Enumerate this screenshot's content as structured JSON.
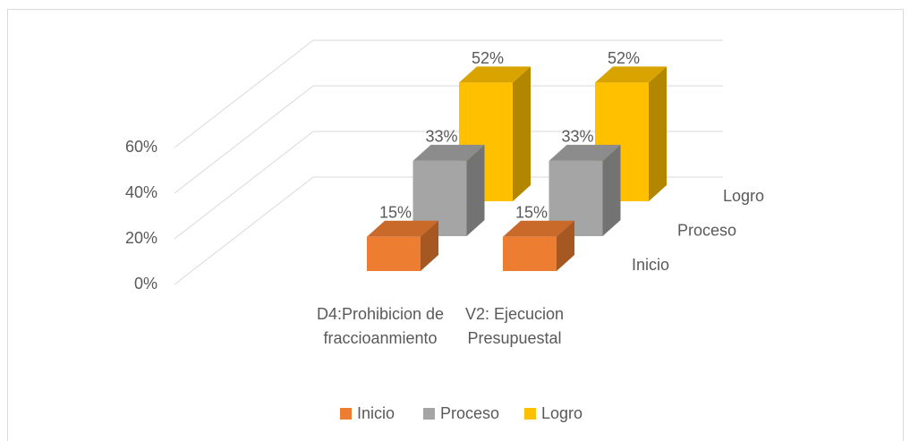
{
  "chart_data": {
    "type": "bar3d",
    "categories": [
      "D4:Prohibicion de fraccioanmiento",
      "V2: Ejecucion Presupuestal"
    ],
    "series": [
      {
        "name": "Inicio",
        "color": "#ED7D31",
        "values": [
          15,
          15
        ],
        "value_labels": [
          "15%",
          "15%"
        ]
      },
      {
        "name": "Proceso",
        "color": "#A5A5A5",
        "values": [
          33,
          33
        ],
        "value_labels": [
          "33%",
          "33%"
        ]
      },
      {
        "name": "Logro",
        "color": "#FFC000",
        "values": [
          52,
          52
        ],
        "value_labels": [
          "52%",
          "52%"
        ]
      }
    ],
    "ylim": [
      0,
      60
    ],
    "yticks": [
      {
        "value": 0,
        "label": "0%"
      },
      {
        "value": 20,
        "label": "20%"
      },
      {
        "value": 40,
        "label": "40%"
      },
      {
        "value": 60,
        "label": "60%"
      }
    ],
    "grid": true,
    "legend": "bottom"
  }
}
